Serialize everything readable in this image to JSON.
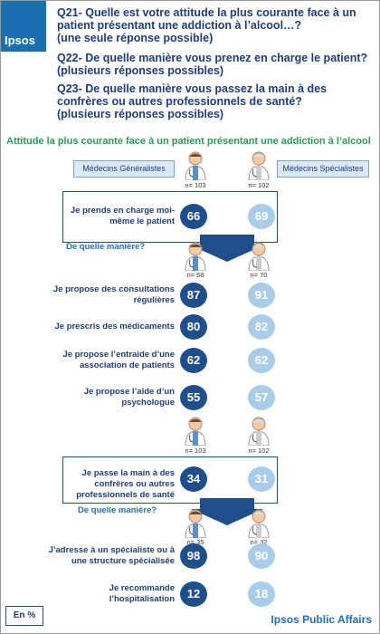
{
  "header": {
    "logo": "Ipsos",
    "questions": [
      {
        "text": "Q21- Quelle est votre attitude la plus courante face à un patient présentant une addiction à l’alcool…?",
        "note": "(une seule réponse possible)"
      },
      {
        "text": "Q22- De quelle manière vous prenez en charge le patient?",
        "note": "(plusieurs réponses possibles)"
      },
      {
        "text": "Q23- De quelle manière vous passez la main à des confrères ou autres professionnels de santé?",
        "note": "(plusieurs réponses possibles)"
      }
    ]
  },
  "subtitle": "Attitude la plus courante face à un patient présentant une addiction à l’alcool",
  "groups": [
    "Médecins Généralistes",
    "Médecins Spécialistes"
  ],
  "sections": [
    {
      "base": [
        "n= 103",
        "n= 102"
      ],
      "statement": "Je prends en charge moi-même le patient",
      "values": [
        66,
        69
      ],
      "followup": "De quelle manière?",
      "followup_base": [
        "n= 68",
        "n= 70"
      ],
      "items": [
        {
          "label": "Je propose des consultations régulières",
          "values": [
            87,
            91
          ]
        },
        {
          "label": "Je prescris des médicaments",
          "values": [
            80,
            82
          ]
        },
        {
          "label": "Je propose l’entraide d’une association de patients",
          "values": [
            62,
            62
          ]
        },
        {
          "label": "Je propose l’aide d’un psychologue",
          "values": [
            55,
            57
          ]
        }
      ]
    },
    {
      "base": [
        "n= 103",
        "n= 102"
      ],
      "statement": "Je passe la main à des confrères ou autres professionnels de santé",
      "values": [
        34,
        31
      ],
      "followup": "De quelle manière?",
      "followup_base": [
        "n= 35",
        "n= 32"
      ],
      "items": [
        {
          "label": "J’adresse à un spécialiste ou à une structure spécialisée",
          "values": [
            98,
            90
          ]
        },
        {
          "label": "Je recommande l’hospitalisation",
          "values": [
            12,
            18
          ]
        }
      ]
    }
  ],
  "footer": {
    "unit": "En %",
    "brand": "Ipsos Public Affairs"
  }
}
